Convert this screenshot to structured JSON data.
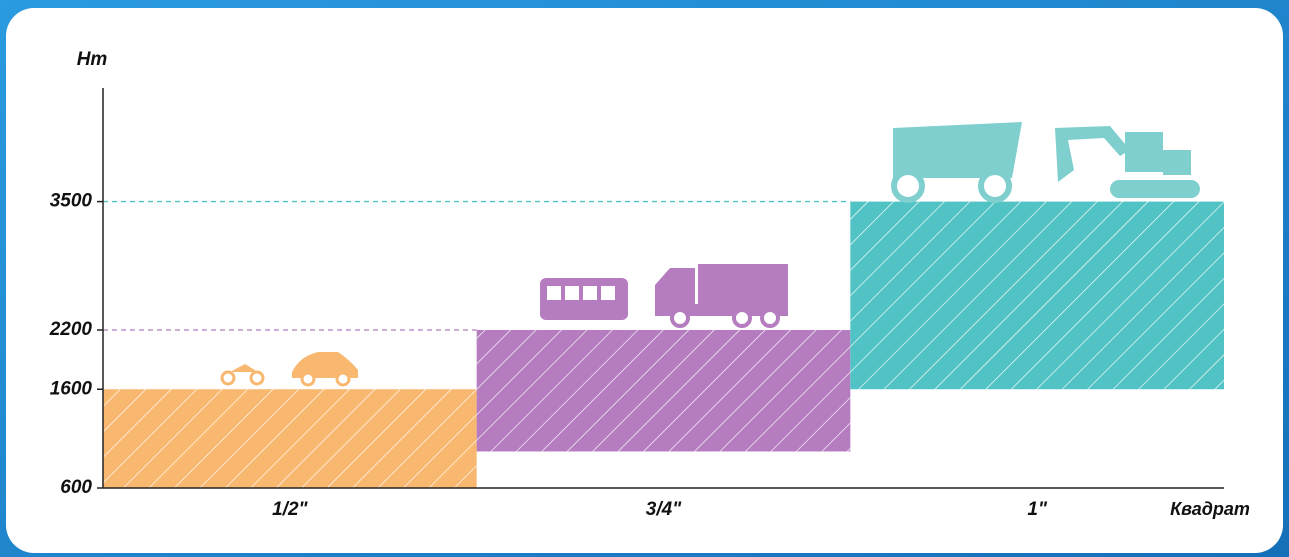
{
  "chart_data": {
    "type": "range-bar",
    "y_label": "Нm",
    "x_label": "Квадрат",
    "categories": [
      "1/2\"",
      "3/4\"",
      "1\""
    ],
    "low": [
      600,
      970,
      1600
    ],
    "high": [
      1600,
      2200,
      3500
    ],
    "colors": [
      "#f8b870",
      "#b57cbf",
      "#52c3c5"
    ],
    "ylim": [
      600,
      4650
    ],
    "yticks": [
      600,
      1600,
      2200,
      3500
    ]
  }
}
